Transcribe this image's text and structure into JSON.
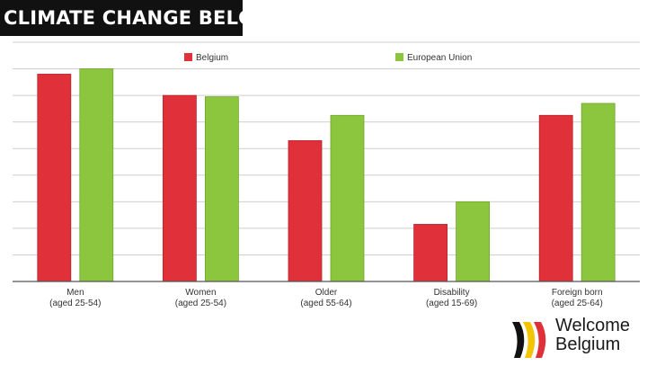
{
  "banner": {
    "title": "CLIMATE CHANGE BELGIUM"
  },
  "logo": {
    "line1": "Welcome",
    "line2": "Belgium"
  },
  "colors": {
    "belgium": "#e03039",
    "eu": "#8cc63f",
    "grid": "#cfcfcf"
  },
  "chart_data": {
    "type": "bar",
    "title": "",
    "xlabel": "",
    "ylabel": "",
    "ylim": [
      0,
      90
    ],
    "grid": true,
    "legend": "top-center",
    "categories": [
      [
        "Men",
        "(aged 25-54)"
      ],
      [
        "Women",
        "(aged 25-54)"
      ],
      [
        "Older",
        "(aged 55-64)"
      ],
      [
        "Disability",
        "(aged 15-69)"
      ],
      [
        "Foreign born",
        "(aged 25-64)"
      ]
    ],
    "series": [
      {
        "name": "Belgium",
        "color": "#e03039",
        "values": [
          78,
          70,
          53,
          21.5,
          62.5
        ]
      },
      {
        "name": "European Union",
        "color": "#8cc63f",
        "values": [
          80,
          69.5,
          62.5,
          30,
          67
        ]
      }
    ]
  }
}
